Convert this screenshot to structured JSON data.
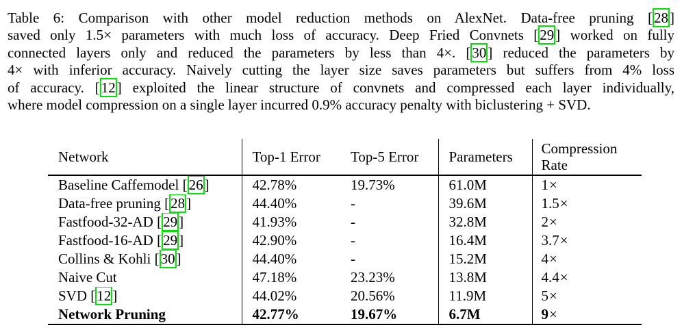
{
  "colors": {
    "citation_box": "#00e400",
    "rule": "#000000",
    "text": "#000000",
    "background": "#ffffff"
  },
  "caption": {
    "lines": [
      {
        "justify": true,
        "segments": [
          {
            "text": "Table 6:  Comparison with other model reduction methods on AlexNet.  Data-free pruning "
          },
          {
            "cite": "28"
          }
        ]
      },
      {
        "justify": true,
        "segments": [
          {
            "text": "saved only 1.5× parameters with much loss of accuracy. Deep Fried Convnets "
          },
          {
            "cite": "29"
          },
          {
            "text": " worked on fully"
          }
        ]
      },
      {
        "justify": true,
        "segments": [
          {
            "text": "connected layers only and reduced the parameters by less than 4×. "
          },
          {
            "cite": "30"
          },
          {
            "text": " reduced the parameters by"
          }
        ]
      },
      {
        "justify": true,
        "segments": [
          {
            "text": "4× with inferior accuracy. Naively cutting the layer size saves parameters but suffers from 4% loss"
          }
        ]
      },
      {
        "justify": true,
        "segments": [
          {
            "text": "of accuracy. "
          },
          {
            "cite": "12"
          },
          {
            "text": " exploited the linear structure of convnets and compressed each layer individually,"
          }
        ]
      },
      {
        "justify": false,
        "segments": [
          {
            "text": "where model compression on a single layer incurred 0.9% accuracy penalty with biclustering + SVD."
          }
        ]
      }
    ]
  },
  "table": {
    "columns": [
      "Network",
      "Top-1 Error",
      "Top-5 Error",
      "Parameters",
      "Compression Rate"
    ],
    "rows": [
      {
        "network": [
          {
            "text": "Baseline Caffemodel "
          },
          {
            "cite": "26"
          }
        ],
        "top1": "42.78%",
        "top5": "19.73%",
        "params": "61.0M",
        "compression": "1×",
        "bold": false
      },
      {
        "network": [
          {
            "text": "Data-free pruning "
          },
          {
            "cite": "28"
          }
        ],
        "top1": "44.40%",
        "top5": "-",
        "params": "39.6M",
        "compression": "1.5×",
        "bold": false
      },
      {
        "network": [
          {
            "text": "Fastfood-32-AD "
          },
          {
            "cite": "29"
          }
        ],
        "top1": "41.93%",
        "top5": "-",
        "params": "32.8M",
        "compression": "2×",
        "bold": false
      },
      {
        "network": [
          {
            "text": "Fastfood-16-AD "
          },
          {
            "cite": "29"
          }
        ],
        "top1": "42.90%",
        "top5": "-",
        "params": "16.4M",
        "compression": "3.7×",
        "bold": false
      },
      {
        "network": [
          {
            "text": "Collins & Kohli "
          },
          {
            "cite": "30"
          }
        ],
        "top1": "44.40%",
        "top5": "-",
        "params": "15.2M",
        "compression": "4×",
        "bold": false
      },
      {
        "network": [
          {
            "text": "Naive Cut"
          }
        ],
        "top1": "47.18%",
        "top5": "23.23%",
        "params": "13.8M",
        "compression": "4.4×",
        "bold": false
      },
      {
        "network": [
          {
            "text": "SVD "
          },
          {
            "cite": "12"
          }
        ],
        "top1": "44.02%",
        "top5": "20.56%",
        "params": "11.9M",
        "compression": "5×",
        "bold": false
      },
      {
        "network": [
          {
            "text": "Network Pruning"
          }
        ],
        "top1": "42.77%",
        "top5": "19.67%",
        "params": "6.7M",
        "compression": "9×",
        "bold": true
      }
    ]
  }
}
